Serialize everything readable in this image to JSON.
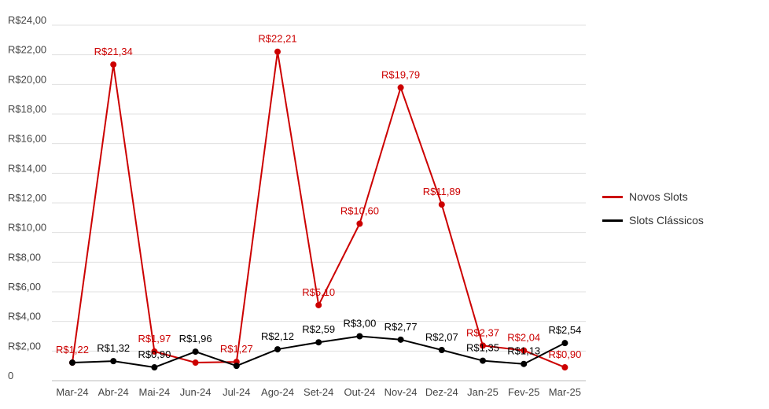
{
  "chart_data": {
    "type": "line",
    "title": "",
    "xlabel": "",
    "ylabel": "",
    "categories": [
      "Mar-24",
      "Abr-24",
      "Mai-24",
      "Jun-24",
      "Jul-24",
      "Ago-24",
      "Set-24",
      "Out-24",
      "Nov-24",
      "Dez-24",
      "Jan-25",
      "Fev-25",
      "Mar-25"
    ],
    "y_ticks": [
      "0",
      "R$2,00",
      "R$4,00",
      "R$6,00",
      "R$8,00",
      "R$10,00",
      "R$12,00",
      "R$14,00",
      "R$16,00",
      "R$18,00",
      "R$20,00",
      "R$22,00",
      "R$24,00"
    ],
    "ylim": [
      0,
      24
    ],
    "grid": true,
    "legend_position": "right",
    "series": [
      {
        "name": "Novos Slots",
        "color": "#cc0000",
        "values": [
          1.22,
          21.34,
          1.97,
          1.22,
          1.27,
          22.21,
          5.1,
          10.6,
          19.79,
          11.89,
          2.37,
          2.04,
          0.9
        ],
        "labels": [
          "R$1,22",
          "R$21,34",
          "R$1,97",
          "",
          "R$1,27",
          "R$22,21",
          "R$5,10",
          "R$10,60",
          "R$19,79",
          "R$11,89",
          "R$2,37",
          "R$2,04",
          "R$0,90"
        ]
      },
      {
        "name": "Slots Clássicos",
        "color": "#000000",
        "values": [
          1.22,
          1.32,
          0.9,
          1.96,
          1.0,
          2.12,
          2.59,
          3.0,
          2.77,
          2.07,
          1.35,
          1.13,
          2.54
        ],
        "labels": [
          "",
          "R$1,32",
          "R$0,90",
          "R$1,96",
          "",
          "R$2,12",
          "R$2,59",
          "R$3,00",
          "R$2,77",
          "R$2,07",
          "R$1,35",
          "R$1,13",
          "R$2,54"
        ]
      }
    ]
  }
}
